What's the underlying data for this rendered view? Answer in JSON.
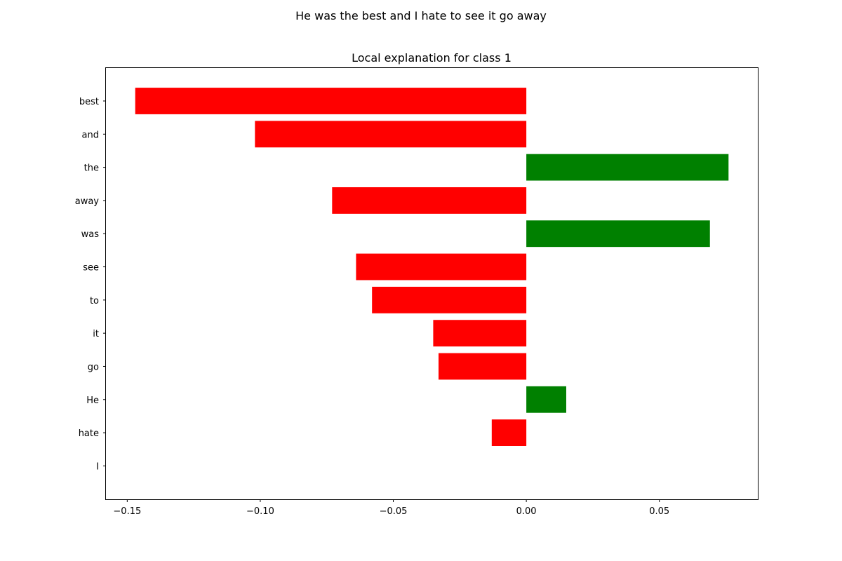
{
  "figure": {
    "suptitle": "He was the best and I hate to see it go away"
  },
  "chart_data": {
    "type": "bar",
    "orientation": "horizontal",
    "title": "Local explanation for class 1",
    "xlabel": "",
    "ylabel": "",
    "categories": [
      "best",
      "and",
      "the",
      "away",
      "was",
      "see",
      "to",
      "it",
      "go",
      "He",
      "hate",
      "I"
    ],
    "values": [
      -0.147,
      -0.102,
      0.076,
      -0.073,
      0.069,
      -0.064,
      -0.058,
      -0.035,
      -0.033,
      0.015,
      -0.013,
      0.0
    ],
    "xlim": [
      -0.158,
      0.087
    ],
    "xticks": [
      -0.15,
      -0.1,
      -0.05,
      0.0,
      0.05
    ],
    "xtick_labels": [
      "−0.15",
      "−0.10",
      "−0.05",
      "0.00",
      "0.05"
    ],
    "colors": {
      "positive": "#008000",
      "negative": "#ff0000"
    },
    "grid": false,
    "legend": false
  }
}
